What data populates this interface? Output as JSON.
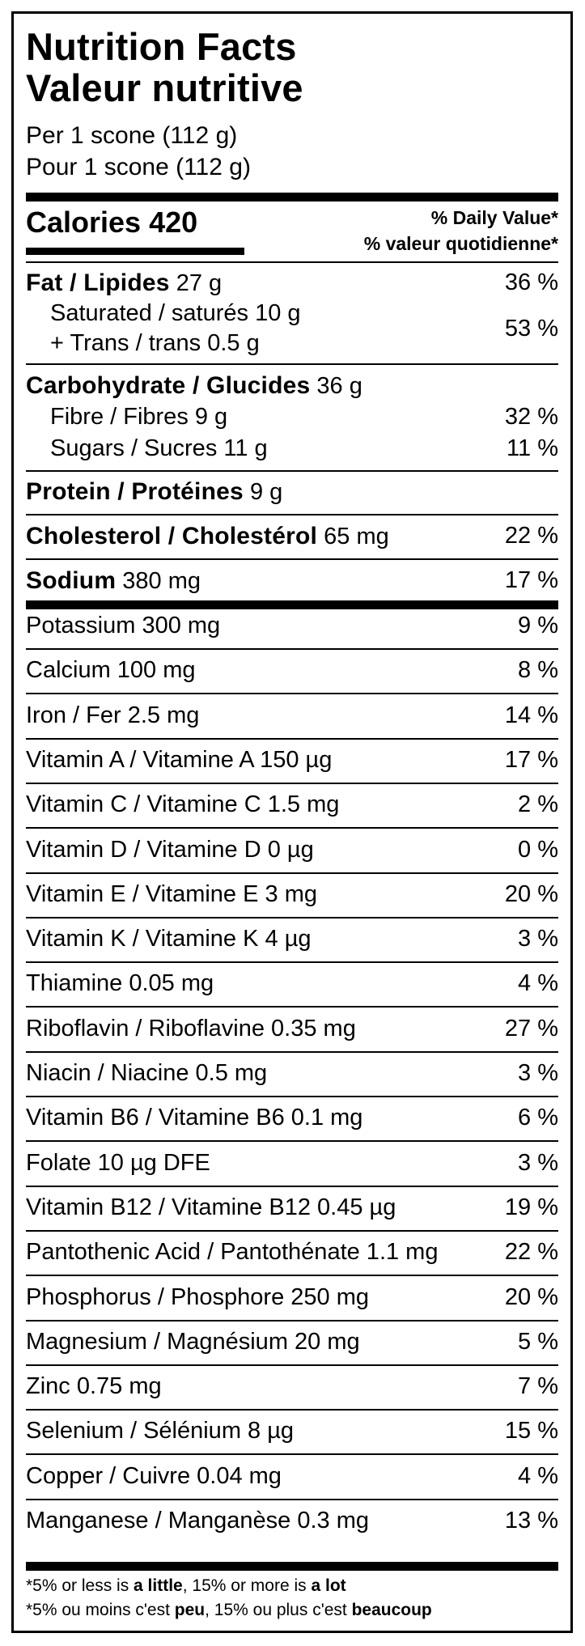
{
  "title_en": "Nutrition Facts",
  "title_fr": "Valeur nutritive",
  "serving_en": "Per 1 scone (112 g)",
  "serving_fr": "Pour 1 scone (112 g)",
  "calories_label": "Calories",
  "calories_value": "420",
  "dv_header_en": "% Daily Value*",
  "dv_header_fr": "% valeur quotidienne*",
  "fat": {
    "label": "Fat / Lipides",
    "amount": "27 g",
    "dv": "36 %"
  },
  "saturated": {
    "label": "Saturated / saturés 10 g"
  },
  "trans": {
    "label": "+ Trans / trans 0.5 g"
  },
  "sat_trans_dv": "53 %",
  "carb": {
    "label": "Carbohydrate / Glucides",
    "amount": "36 g"
  },
  "fibre": {
    "label": "Fibre / Fibres 9 g",
    "dv": "32 %"
  },
  "sugars": {
    "label": "Sugars / Sucres 11 g",
    "dv": "11 %"
  },
  "protein": {
    "label": "Protein / Protéines",
    "amount": "9 g"
  },
  "cholesterol": {
    "label": "Cholesterol / Cholestérol",
    "amount": "65 mg",
    "dv": "22 %"
  },
  "sodium": {
    "label": "Sodium",
    "amount": "380 mg",
    "dv": "17 %"
  },
  "micros": [
    {
      "label": "Potassium 300 mg",
      "dv": "9 %"
    },
    {
      "label": "Calcium 100 mg",
      "dv": "8 %"
    },
    {
      "label": "Iron / Fer 2.5 mg",
      "dv": "14 %"
    },
    {
      "label": "Vitamin A / Vitamine A 150 µg",
      "dv": "17 %"
    },
    {
      "label": "Vitamin C / Vitamine C 1.5 mg",
      "dv": "2 %"
    },
    {
      "label": "Vitamin D / Vitamine D 0 µg",
      "dv": "0 %"
    },
    {
      "label": "Vitamin E / Vitamine E 3 mg",
      "dv": "20 %"
    },
    {
      "label": "Vitamin K / Vitamine K 4 µg",
      "dv": "3 %"
    },
    {
      "label": "Thiamine 0.05 mg",
      "dv": "4 %"
    },
    {
      "label": "Riboflavin / Riboflavine 0.35 mg",
      "dv": "27 %"
    },
    {
      "label": "Niacin / Niacine 0.5 mg",
      "dv": "3 %"
    },
    {
      "label": "Vitamin B6 / Vitamine B6 0.1 mg",
      "dv": "6 %"
    },
    {
      "label": "Folate 10 µg DFE",
      "dv": "3 %"
    },
    {
      "label": "Vitamin B12 / Vitamine B12 0.45 µg",
      "dv": "19 %"
    },
    {
      "label": "Pantothenic Acid / Pantothénate 1.1 mg",
      "dv": "22 %"
    },
    {
      "label": "Phosphorus / Phosphore 250 mg",
      "dv": "20 %"
    },
    {
      "label": "Magnesium / Magnésium 20 mg",
      "dv": "5 %"
    },
    {
      "label": "Zinc 0.75 mg",
      "dv": "7 %"
    },
    {
      "label": "Selenium / Sélénium 8 µg",
      "dv": "15 %"
    },
    {
      "label": "Copper / Cuivre 0.04 mg",
      "dv": "4 %"
    },
    {
      "label": "Manganese / Manganèse 0.3 mg",
      "dv": "13 %"
    }
  ],
  "footnote_en": {
    "p1": "*5% or less is ",
    "b1": "a little",
    "p2": ", 15% or more is ",
    "b2": "a lot"
  },
  "footnote_fr": {
    "p1": "*5% ou moins c'est ",
    "b1": "peu",
    "p2": ", 15% ou plus c'est ",
    "b2": "beaucoup"
  }
}
